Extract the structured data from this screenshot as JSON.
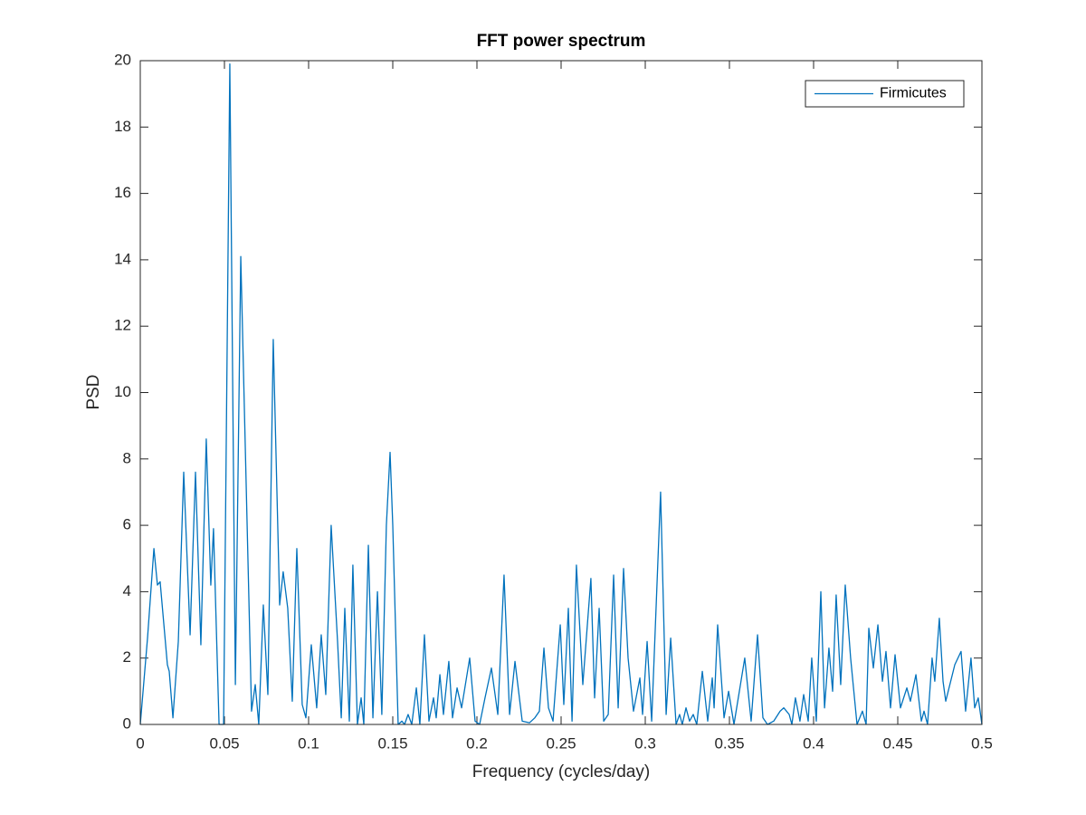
{
  "chart_data": {
    "type": "line",
    "title": "FFT power spectrum",
    "xlabel": "Frequency (cycles/day)",
    "ylabel": "PSD",
    "xlim": [
      0,
      0.5
    ],
    "ylim": [
      0,
      20
    ],
    "xticks": [
      0,
      0.05,
      0.1,
      0.15,
      0.2,
      0.25,
      0.3,
      0.35,
      0.4,
      0.45,
      0.5
    ],
    "yticks": [
      0,
      2,
      4,
      6,
      8,
      10,
      12,
      14,
      16,
      18,
      20
    ],
    "legend": "northeast",
    "grid": false,
    "x": [
      0,
      0.0043,
      0.0081,
      0.0102,
      0.0118,
      0.0161,
      0.0172,
      0.0194,
      0.0226,
      0.0258,
      0.0296,
      0.0328,
      0.036,
      0.0392,
      0.0419,
      0.0435,
      0.0468,
      0.0495,
      0.0532,
      0.0565,
      0.0597,
      0.0661,
      0.0683,
      0.0704,
      0.0731,
      0.0758,
      0.079,
      0.0828,
      0.0849,
      0.0876,
      0.0903,
      0.093,
      0.0962,
      0.0984,
      0.1016,
      0.1048,
      0.1075,
      0.1102,
      0.1134,
      0.1172,
      0.1194,
      0.1215,
      0.1242,
      0.1263,
      0.129,
      0.1312,
      0.1328,
      0.1355,
      0.1382,
      0.1409,
      0.1435,
      0.1462,
      0.1484,
      0.15,
      0.1532,
      0.1554,
      0.157,
      0.1591,
      0.1613,
      0.164,
      0.1661,
      0.1688,
      0.1715,
      0.1742,
      0.1758,
      0.178,
      0.1801,
      0.1833,
      0.1855,
      0.1882,
      0.1909,
      0.1957,
      0.1989,
      0.2016,
      0.2048,
      0.2086,
      0.2124,
      0.2161,
      0.2194,
      0.2226,
      0.2269,
      0.2312,
      0.2344,
      0.2371,
      0.2398,
      0.2425,
      0.2452,
      0.2495,
      0.2516,
      0.2543,
      0.2565,
      0.2591,
      0.2629,
      0.2677,
      0.2699,
      0.2726,
      0.2753,
      0.278,
      0.2812,
      0.2839,
      0.2871,
      0.2898,
      0.293,
      0.2968,
      0.2984,
      0.3011,
      0.3038,
      0.3091,
      0.3124,
      0.3151,
      0.3183,
      0.3204,
      0.322,
      0.3242,
      0.3263,
      0.3285,
      0.3306,
      0.3339,
      0.3371,
      0.3398,
      0.3409,
      0.343,
      0.3468,
      0.3495,
      0.3527,
      0.3591,
      0.3629,
      0.3667,
      0.3699,
      0.3726,
      0.3763,
      0.3801,
      0.3823,
      0.3855,
      0.3871,
      0.3892,
      0.3919,
      0.3941,
      0.3968,
      0.3989,
      0.4016,
      0.4043,
      0.4065,
      0.4091,
      0.4113,
      0.4134,
      0.4161,
      0.4188,
      0.422,
      0.4258,
      0.429,
      0.4312,
      0.4328,
      0.4355,
      0.4382,
      0.4409,
      0.443,
      0.4457,
      0.4484,
      0.4516,
      0.4554,
      0.4575,
      0.4608,
      0.464,
      0.4656,
      0.4677,
      0.4704,
      0.472,
      0.4747,
      0.4769,
      0.4785,
      0.4839,
      0.4876,
      0.4903,
      0.4935,
      0.4957,
      0.4978,
      0.5
    ],
    "series": [
      {
        "name": "Firmicutes",
        "color": "#0072bd",
        "values": [
          0,
          2.6,
          5.3,
          4.2,
          4.3,
          1.8,
          1.6,
          0.2,
          2.5,
          7.6,
          2.7,
          7.6,
          2.4,
          8.6,
          4.2,
          5.9,
          0,
          0,
          19.9,
          1.2,
          14.1,
          0.4,
          1.2,
          0,
          3.6,
          0.9,
          11.6,
          3.6,
          4.6,
          3.5,
          0.7,
          5.3,
          0.6,
          0.2,
          2.4,
          0.5,
          2.7,
          0.9,
          6.0,
          2.5,
          0.2,
          3.5,
          0.1,
          4.8,
          0,
          0.8,
          0,
          5.4,
          0.2,
          4.0,
          0.3,
          6.0,
          8.2,
          6,
          0,
          0.1,
          0,
          0.3,
          0,
          1.1,
          0,
          2.7,
          0.1,
          0.8,
          0.2,
          1.5,
          0.3,
          1.9,
          0.2,
          1.1,
          0.5,
          2.0,
          0.1,
          0,
          0.8,
          1.7,
          0.3,
          4.5,
          0.3,
          1.9,
          0.1,
          0.05,
          0.2,
          0.4,
          2.3,
          0.5,
          0.1,
          3.0,
          0.6,
          3.5,
          0.1,
          4.8,
          1.2,
          4.4,
          0.8,
          3.5,
          0.1,
          0.3,
          4.5,
          0.5,
          4.7,
          2.0,
          0.4,
          1.4,
          0.3,
          2.5,
          0.1,
          7.0,
          0.3,
          2.6,
          0,
          0.3,
          0,
          0.5,
          0.1,
          0.3,
          0,
          1.6,
          0.1,
          1.4,
          0.5,
          3.0,
          0.2,
          1.0,
          0,
          2.0,
          0.1,
          2.7,
          0.2,
          0,
          0.1,
          0.4,
          0.5,
          0.3,
          0,
          0.8,
          0.1,
          0.9,
          0.1,
          2.0,
          0.1,
          4.0,
          0.5,
          2.3,
          1.0,
          3.9,
          1.2,
          4.2,
          2.0,
          0,
          0.4,
          0,
          2.9,
          1.7,
          3.0,
          1.3,
          2.2,
          0.5,
          2.1,
          0.5,
          1.1,
          0.7,
          1.5,
          0.1,
          0.4,
          0,
          2.0,
          1.3,
          3.2,
          1.3,
          0.7,
          1.8,
          2.2,
          0.4,
          2.0,
          0.5,
          0.8,
          0
        ]
      }
    ]
  }
}
